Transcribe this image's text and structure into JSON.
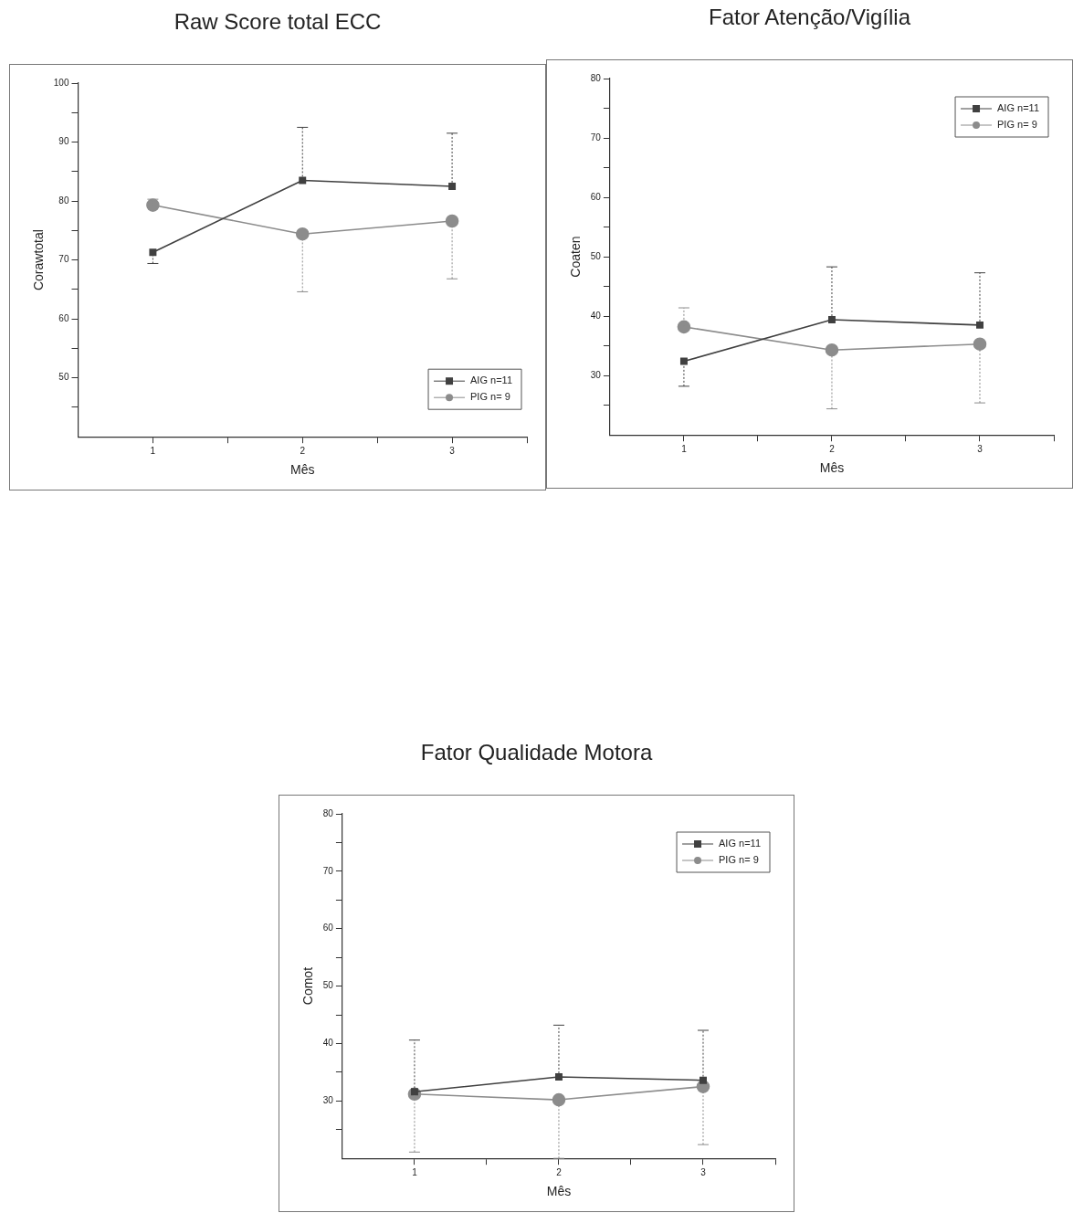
{
  "chart_data": [
    {
      "type": "line",
      "title": "Raw Score total ECC",
      "xlabel": "Mês",
      "ylabel": "Corawtotal",
      "x": [
        1,
        2,
        3
      ],
      "xlim": [
        0.5,
        3.5
      ],
      "xticks": [
        1,
        {
          "value": 1.5,
          "label": null
        },
        2,
        {
          "value": 2.5,
          "label": null
        },
        3,
        {
          "value": 3.5,
          "label": null
        }
      ],
      "ylim": [
        40,
        100
      ],
      "yticks": [
        {
          "value": 45,
          "label": null
        },
        50,
        {
          "value": 55,
          "label": null
        },
        60,
        {
          "value": 65,
          "label": null
        },
        70,
        {
          "value": 75,
          "label": null
        },
        80,
        {
          "value": 85,
          "label": null
        },
        90,
        {
          "value": 95,
          "label": null
        },
        100
      ],
      "grid": false,
      "legend": "bottom right",
      "series": [
        {
          "name": "AIG n=11",
          "color": "#404040",
          "marker": "square",
          "values": [
            71.3,
            83.5,
            82.5
          ],
          "errors": [
            [
              69.4,
              71.3
            ],
            [
              83.5,
              92.5
            ],
            [
              82.5,
              91.5
            ]
          ]
        },
        {
          "name": "PIG n= 9",
          "color": "#8c8c8c",
          "marker": "circle",
          "values": [
            79.3,
            74.4,
            76.6
          ],
          "errors": [
            [
              79.3,
              80.3
            ],
            [
              64.6,
              74.4
            ],
            [
              66.8,
              76.6
            ]
          ]
        }
      ]
    },
    {
      "type": "line",
      "title": "Fator Atenção/Vigília",
      "xlabel": "Mês",
      "ylabel": "Coaten",
      "x": [
        1,
        2,
        3
      ],
      "xlim": [
        0.5,
        3.5
      ],
      "xticks": [
        1,
        {
          "value": 1.5,
          "label": null
        },
        2,
        {
          "value": 2.5,
          "label": null
        },
        3,
        {
          "value": 3.5,
          "label": null
        }
      ],
      "ylim": [
        20,
        80
      ],
      "yticks": [
        {
          "value": 25,
          "label": null
        },
        30,
        {
          "value": 35,
          "label": null
        },
        40,
        {
          "value": 45,
          "label": null
        },
        50,
        {
          "value": 55,
          "label": null
        },
        60,
        {
          "value": 65,
          "label": null
        },
        70,
        {
          "value": 75,
          "label": null
        },
        80
      ],
      "grid": false,
      "legend": "top right",
      "series": [
        {
          "name": "AIG n=11",
          "color": "#404040",
          "marker": "square",
          "values": [
            32.4,
            39.4,
            38.5
          ],
          "errors": [
            [
              28.2,
              32.4
            ],
            [
              39.4,
              48.3
            ],
            [
              38.5,
              47.3
            ]
          ]
        },
        {
          "name": "PIG n= 9",
          "color": "#8c8c8c",
          "marker": "circle",
          "values": [
            38.2,
            34.3,
            35.3
          ],
          "errors": [
            [
              38.2,
              41.4
            ],
            [
              24.4,
              34.3
            ],
            [
              25.4,
              35.3
            ]
          ]
        }
      ]
    },
    {
      "type": "line",
      "title": "Fator Qualidade Motora",
      "xlabel": "Mês",
      "ylabel": "Comot",
      "x": [
        1,
        2,
        3
      ],
      "xlim": [
        0.5,
        3.5
      ],
      "xticks": [
        1,
        {
          "value": 1.5,
          "label": null
        },
        2,
        {
          "value": 2.5,
          "label": null
        },
        3,
        {
          "value": 3.5,
          "label": null
        }
      ],
      "ylim": [
        20,
        80
      ],
      "yticks": [
        {
          "value": 25,
          "label": null
        },
        30,
        {
          "value": 35,
          "label": null
        },
        40,
        {
          "value": 45,
          "label": null
        },
        50,
        {
          "value": 55,
          "label": null
        },
        60,
        {
          "value": 65,
          "label": null
        },
        70,
        {
          "value": 75,
          "label": null
        },
        80
      ],
      "grid": false,
      "legend": "top right",
      "series": [
        {
          "name": "AIG n=11",
          "color": "#404040",
          "marker": "square",
          "values": [
            31.6,
            34.2,
            33.6
          ],
          "errors": [
            [
              31.6,
              40.6
            ],
            [
              34.2,
              43.2
            ],
            [
              33.6,
              42.3
            ]
          ]
        },
        {
          "name": "PIG n= 9",
          "color": "#8c8c8c",
          "marker": "circle",
          "values": [
            31.2,
            30.2,
            32.5
          ],
          "errors": [
            [
              21.1,
              31.2
            ],
            [
              20,
              30.2
            ],
            [
              22.4,
              32.5
            ]
          ]
        }
      ]
    }
  ]
}
